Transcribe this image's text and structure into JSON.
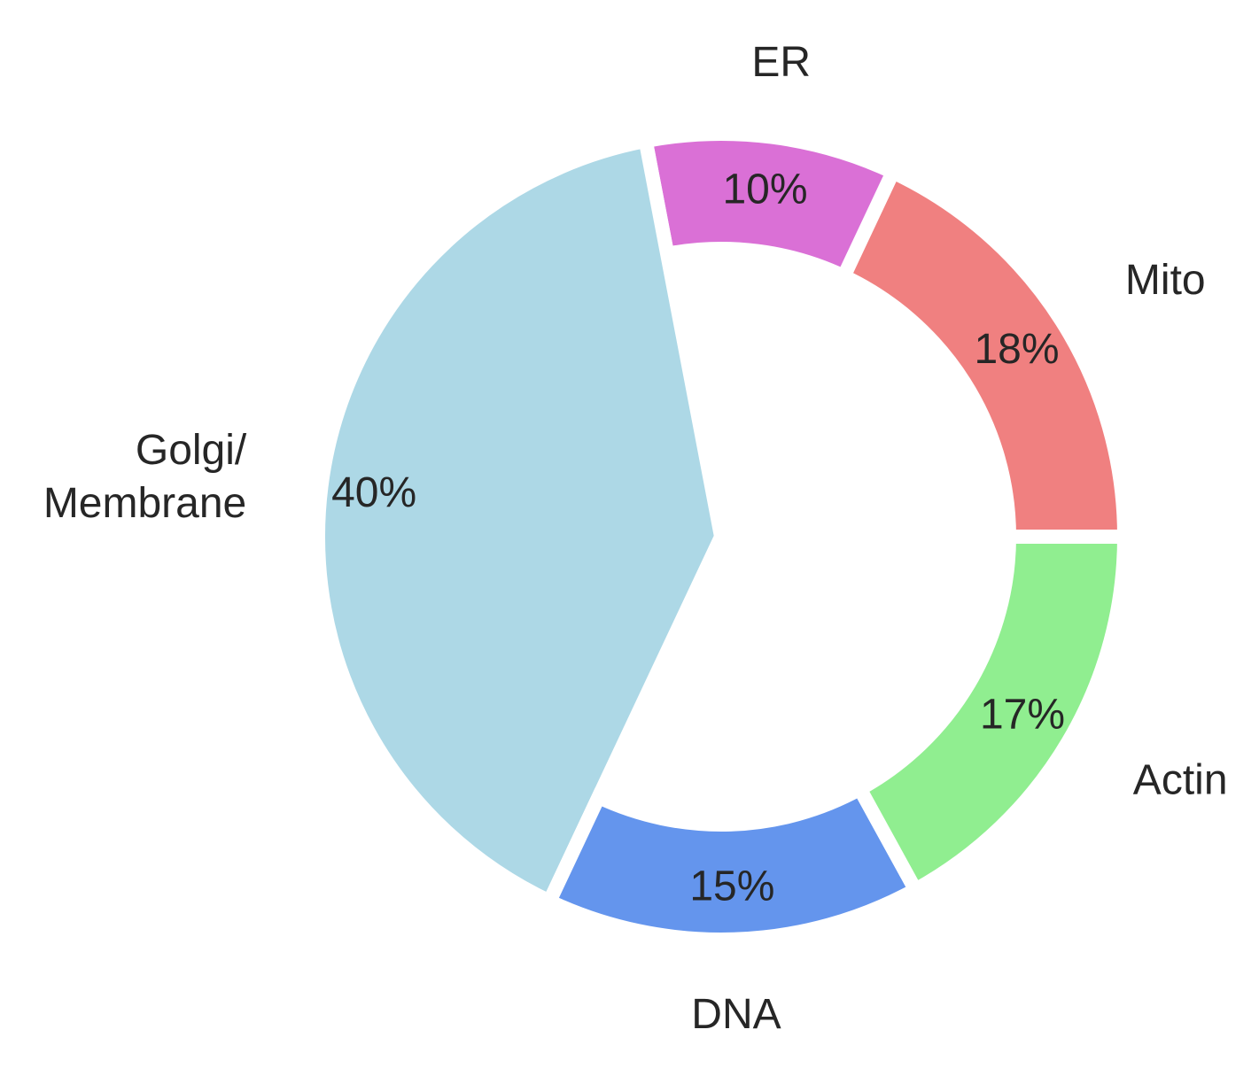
{
  "chart_data": {
    "type": "pie",
    "variant": "donut",
    "title": "",
    "slices": [
      {
        "label": "Mito",
        "value": 18,
        "pct_label": "18%",
        "color": "#F08080"
      },
      {
        "label": "ER",
        "value": 10,
        "pct_label": "10%",
        "color": "#DA70D6"
      },
      {
        "label": "Golgi/\nMembrane",
        "value": 40,
        "pct_label": "40%",
        "color": "#ADD8E6"
      },
      {
        "label": "DNA",
        "value": 15,
        "pct_label": "15%",
        "color": "#6495ED"
      },
      {
        "label": "Actin",
        "value": 17,
        "pct_label": "17%",
        "color": "#90EE90"
      }
    ]
  }
}
